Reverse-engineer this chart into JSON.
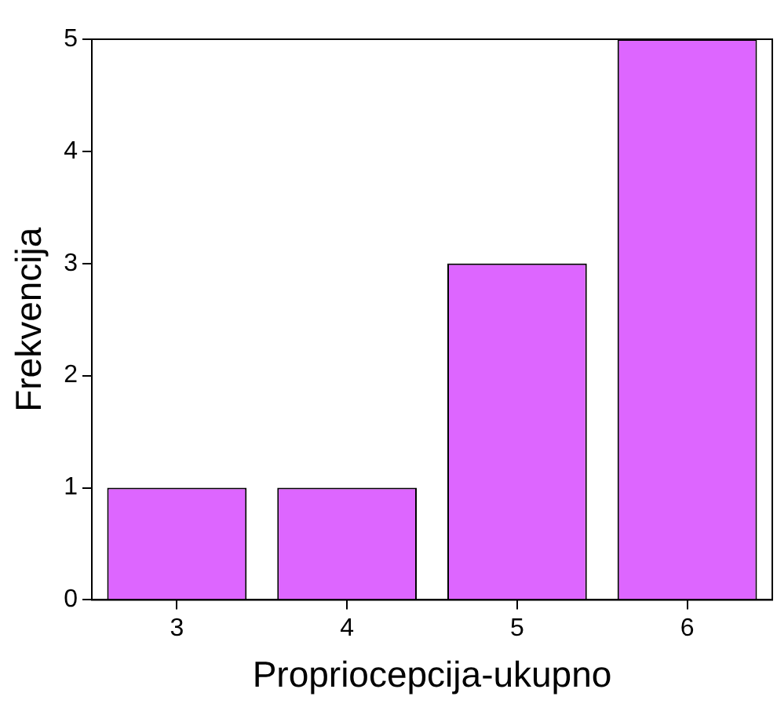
{
  "chart_data": {
    "type": "bar",
    "xlabel": "Propriocepcija-ukupno",
    "ylabel": "Frekvencija",
    "categories": [
      "3",
      "4",
      "5",
      "6"
    ],
    "values": [
      1,
      1,
      3,
      5
    ],
    "color": "#dd66ff",
    "ylim": [
      0,
      5
    ],
    "yticks": [
      0,
      1,
      2,
      3,
      4,
      5
    ],
    "grid": false
  }
}
